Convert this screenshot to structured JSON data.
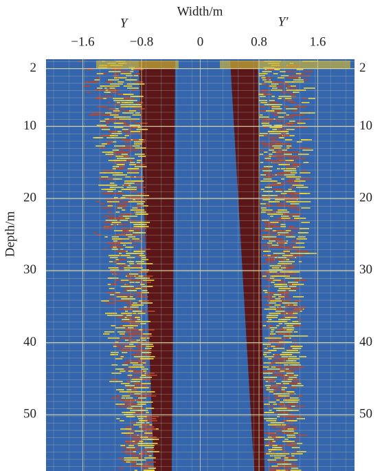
{
  "chart_data": {
    "type": "heatmap",
    "x_label": "Width/m",
    "y_label": "Depth/m",
    "side_labels": [
      "Y",
      "Y′"
    ],
    "xlim": [
      -2.1,
      2.1
    ],
    "xticks": [
      {
        "value": -1.6,
        "label": "−1.6"
      },
      {
        "value": -0.8,
        "label": "−0.8"
      },
      0,
      0.8,
      1.6
    ],
    "ylim": [
      0.7,
      57.8
    ],
    "yticks": [
      2,
      10,
      20,
      30,
      40,
      50
    ],
    "grid": true
  }
}
